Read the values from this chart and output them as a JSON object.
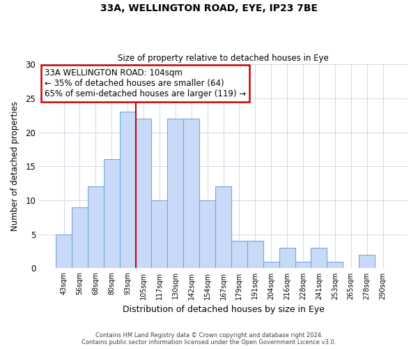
{
  "title1": "33A, WELLINGTON ROAD, EYE, IP23 7BE",
  "title2": "Size of property relative to detached houses in Eye",
  "xlabel": "Distribution of detached houses by size in Eye",
  "ylabel": "Number of detached properties",
  "bar_labels": [
    "43sqm",
    "56sqm",
    "68sqm",
    "80sqm",
    "93sqm",
    "105sqm",
    "117sqm",
    "130sqm",
    "142sqm",
    "154sqm",
    "167sqm",
    "179sqm",
    "191sqm",
    "204sqm",
    "216sqm",
    "228sqm",
    "241sqm",
    "253sqm",
    "265sqm",
    "278sqm",
    "290sqm"
  ],
  "bar_values": [
    5,
    9,
    12,
    16,
    23,
    22,
    10,
    22,
    22,
    10,
    12,
    4,
    4,
    1,
    3,
    1,
    3,
    1,
    0,
    2,
    0
  ],
  "bar_color": "#c9daf8",
  "bar_edge_color": "#6fa8dc",
  "vline_color": "#cc0000",
  "ylim": [
    0,
    30
  ],
  "yticks": [
    0,
    5,
    10,
    15,
    20,
    25,
    30
  ],
  "annotation_line1": "33A WELLINGTON ROAD: 104sqm",
  "annotation_line2": "← 35% of detached houses are smaller (64)",
  "annotation_line3": "65% of semi-detached houses are larger (119) →",
  "annotation_box_color": "#ffffff",
  "annotation_box_edge": "#cc0000",
  "footer1": "Contains HM Land Registry data © Crown copyright and database right 2024.",
  "footer2": "Contains public sector information licensed under the Open Government Licence v3.0."
}
